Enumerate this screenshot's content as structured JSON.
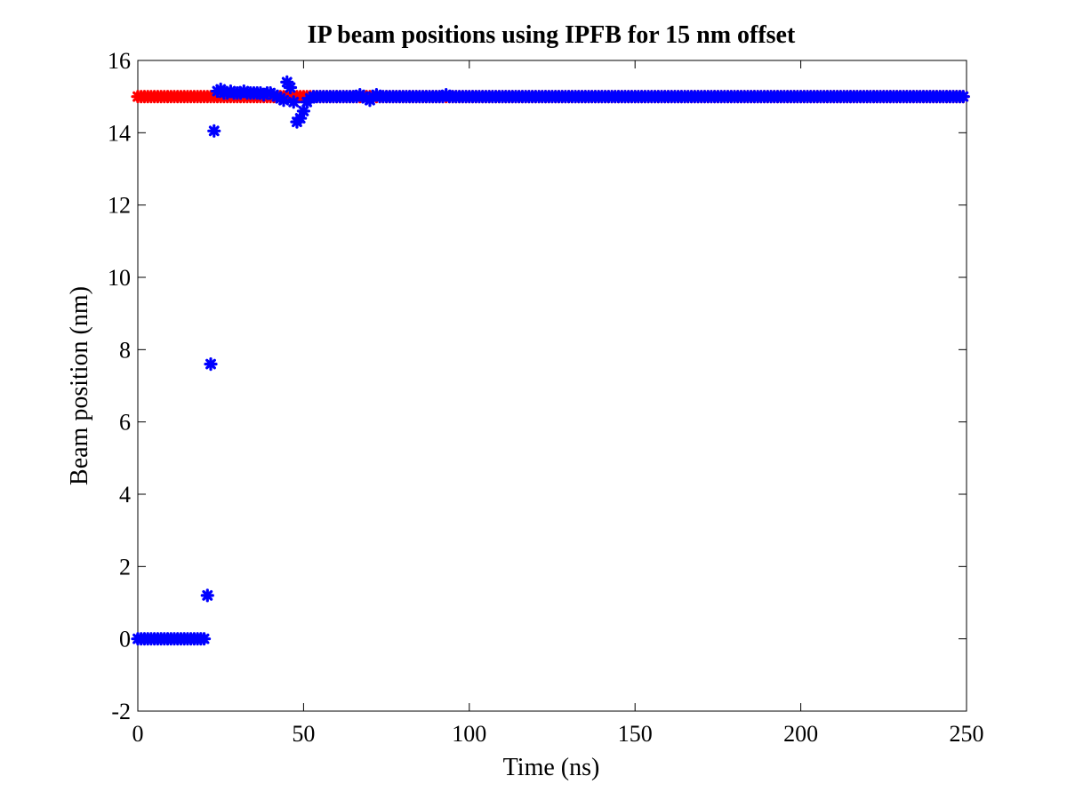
{
  "chart_data": {
    "type": "scatter",
    "title": "IP beam positions using IPFB for 15 nm offset",
    "xlabel": "Time (ns)",
    "ylabel": "Beam position (nm)",
    "xlim": [
      0,
      250
    ],
    "ylim": [
      -2,
      16
    ],
    "xticks": [
      0,
      50,
      100,
      150,
      200,
      250
    ],
    "yticks": [
      -2,
      0,
      2,
      4,
      6,
      8,
      10,
      12,
      14,
      16
    ],
    "grid": false,
    "legend": "none",
    "series": [
      {
        "color": "#ff0000",
        "marker": "asterisk",
        "x_range": [
          0,
          249
        ],
        "x_step": 1,
        "y_constant": 15
      },
      {
        "color": "#0000ff",
        "marker": "asterisk",
        "points": [
          [
            0,
            0
          ],
          [
            1,
            0
          ],
          [
            2,
            0
          ],
          [
            3,
            0
          ],
          [
            4,
            0
          ],
          [
            5,
            0
          ],
          [
            6,
            0
          ],
          [
            7,
            0
          ],
          [
            8,
            0
          ],
          [
            9,
            0
          ],
          [
            10,
            0
          ],
          [
            11,
            0
          ],
          [
            12,
            0
          ],
          [
            13,
            0
          ],
          [
            14,
            0
          ],
          [
            15,
            0
          ],
          [
            16,
            0
          ],
          [
            17,
            0
          ],
          [
            18,
            0
          ],
          [
            19,
            0
          ],
          [
            20,
            0
          ],
          [
            21,
            1.2
          ],
          [
            22,
            7.6
          ],
          [
            23,
            14.05
          ],
          [
            24,
            15.15
          ],
          [
            25,
            15.2
          ],
          [
            26,
            15.1
          ],
          [
            27,
            15.1
          ],
          [
            28,
            15.15
          ],
          [
            29,
            15.1
          ],
          [
            30,
            15.1
          ],
          [
            31,
            15.1
          ],
          [
            32,
            15.15
          ],
          [
            33,
            15.1
          ],
          [
            34,
            15.1
          ],
          [
            35,
            15.1
          ],
          [
            36,
            15.1
          ],
          [
            37,
            15.1
          ],
          [
            38,
            15.05
          ],
          [
            39,
            15.1
          ],
          [
            40,
            15.1
          ],
          [
            41,
            15.05
          ],
          [
            42,
            15.0
          ],
          [
            43,
            14.95
          ],
          [
            44,
            14.9
          ],
          [
            45,
            15.4
          ],
          [
            46,
            15.25
          ],
          [
            47,
            14.85
          ],
          [
            48,
            14.3
          ],
          [
            49,
            14.4
          ],
          [
            50,
            14.6
          ],
          [
            51,
            14.85
          ],
          [
            52,
            14.95
          ],
          [
            53,
            15.0
          ],
          [
            54,
            15.0
          ],
          [
            55,
            15.0
          ],
          [
            56,
            15.0
          ],
          [
            57,
            15.0
          ],
          [
            58,
            15.0
          ],
          [
            59,
            15.0
          ],
          [
            60,
            15.0
          ],
          [
            61,
            15.0
          ],
          [
            62,
            15.0
          ],
          [
            63,
            15.0
          ],
          [
            64,
            15.0
          ],
          [
            65,
            15.0
          ],
          [
            66,
            15.0
          ],
          [
            67,
            15.05
          ],
          [
            68,
            15.0
          ],
          [
            69,
            14.95
          ],
          [
            70,
            14.9
          ],
          [
            71,
            15.0
          ],
          [
            72,
            15.05
          ],
          [
            73,
            15.0
          ],
          [
            74,
            15.0
          ],
          [
            75,
            15.0
          ],
          [
            76,
            15.0
          ],
          [
            77,
            15.0
          ],
          [
            78,
            15.0
          ],
          [
            79,
            15.0
          ],
          [
            80,
            15.0
          ],
          [
            81,
            15.0
          ],
          [
            82,
            15.0
          ],
          [
            83,
            15.0
          ],
          [
            84,
            15.0
          ],
          [
            85,
            15.0
          ],
          [
            86,
            15.0
          ],
          [
            87,
            15.0
          ],
          [
            88,
            15.0
          ],
          [
            89,
            15.0
          ],
          [
            90,
            15.0
          ],
          [
            91,
            15.0
          ],
          [
            92,
            15.0
          ],
          [
            93,
            15.05
          ],
          [
            94,
            15.0
          ]
        ],
        "tail_x_range": [
          95,
          249
        ],
        "tail_y_constant": 15
      }
    ]
  }
}
